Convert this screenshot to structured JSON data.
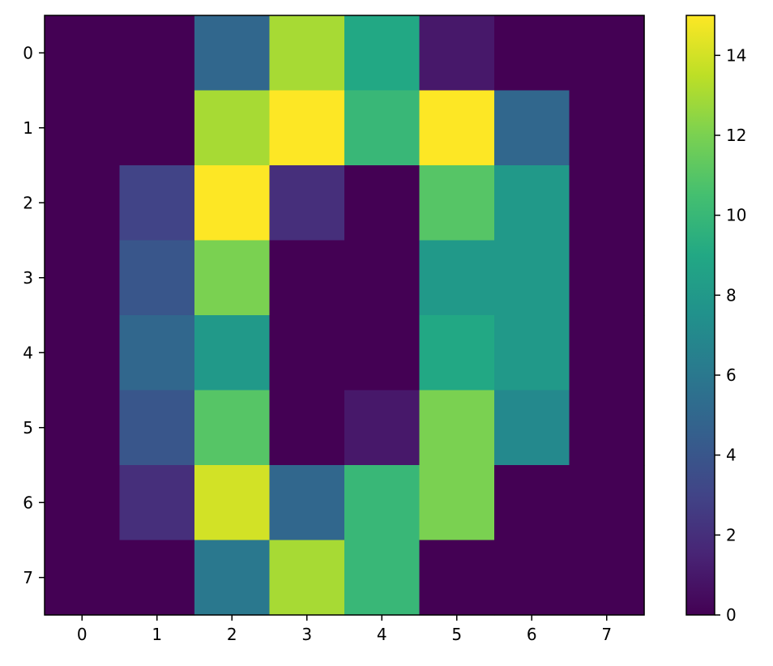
{
  "chart_data": {
    "type": "heatmap",
    "title": "",
    "xlabel": "",
    "ylabel": "",
    "x_ticks": [
      "0",
      "1",
      "2",
      "3",
      "4",
      "5",
      "6",
      "7"
    ],
    "y_ticks": [
      "0",
      "1",
      "2",
      "3",
      "4",
      "5",
      "6",
      "7"
    ],
    "values": [
      [
        0,
        0,
        5,
        13,
        9,
        1,
        0,
        0
      ],
      [
        0,
        0,
        13,
        15,
        10,
        15,
        5,
        0
      ],
      [
        0,
        3,
        15,
        2,
        0,
        11,
        8,
        0
      ],
      [
        0,
        4,
        12,
        0,
        0,
        8,
        8,
        0
      ],
      [
        0,
        5,
        8,
        0,
        0,
        9,
        8,
        0
      ],
      [
        0,
        4,
        11,
        0,
        1,
        12,
        7,
        0
      ],
      [
        0,
        2,
        14,
        5,
        10,
        12,
        0,
        0
      ],
      [
        0,
        0,
        6,
        13,
        10,
        0,
        0,
        0
      ]
    ],
    "colormap": "viridis",
    "colorbar": {
      "range": [
        0,
        15
      ],
      "ticks": [
        0,
        2,
        4,
        6,
        8,
        10,
        12,
        14
      ],
      "tick_labels": [
        "0",
        "2",
        "4",
        "6",
        "8",
        "10",
        "12",
        "14"
      ]
    }
  }
}
